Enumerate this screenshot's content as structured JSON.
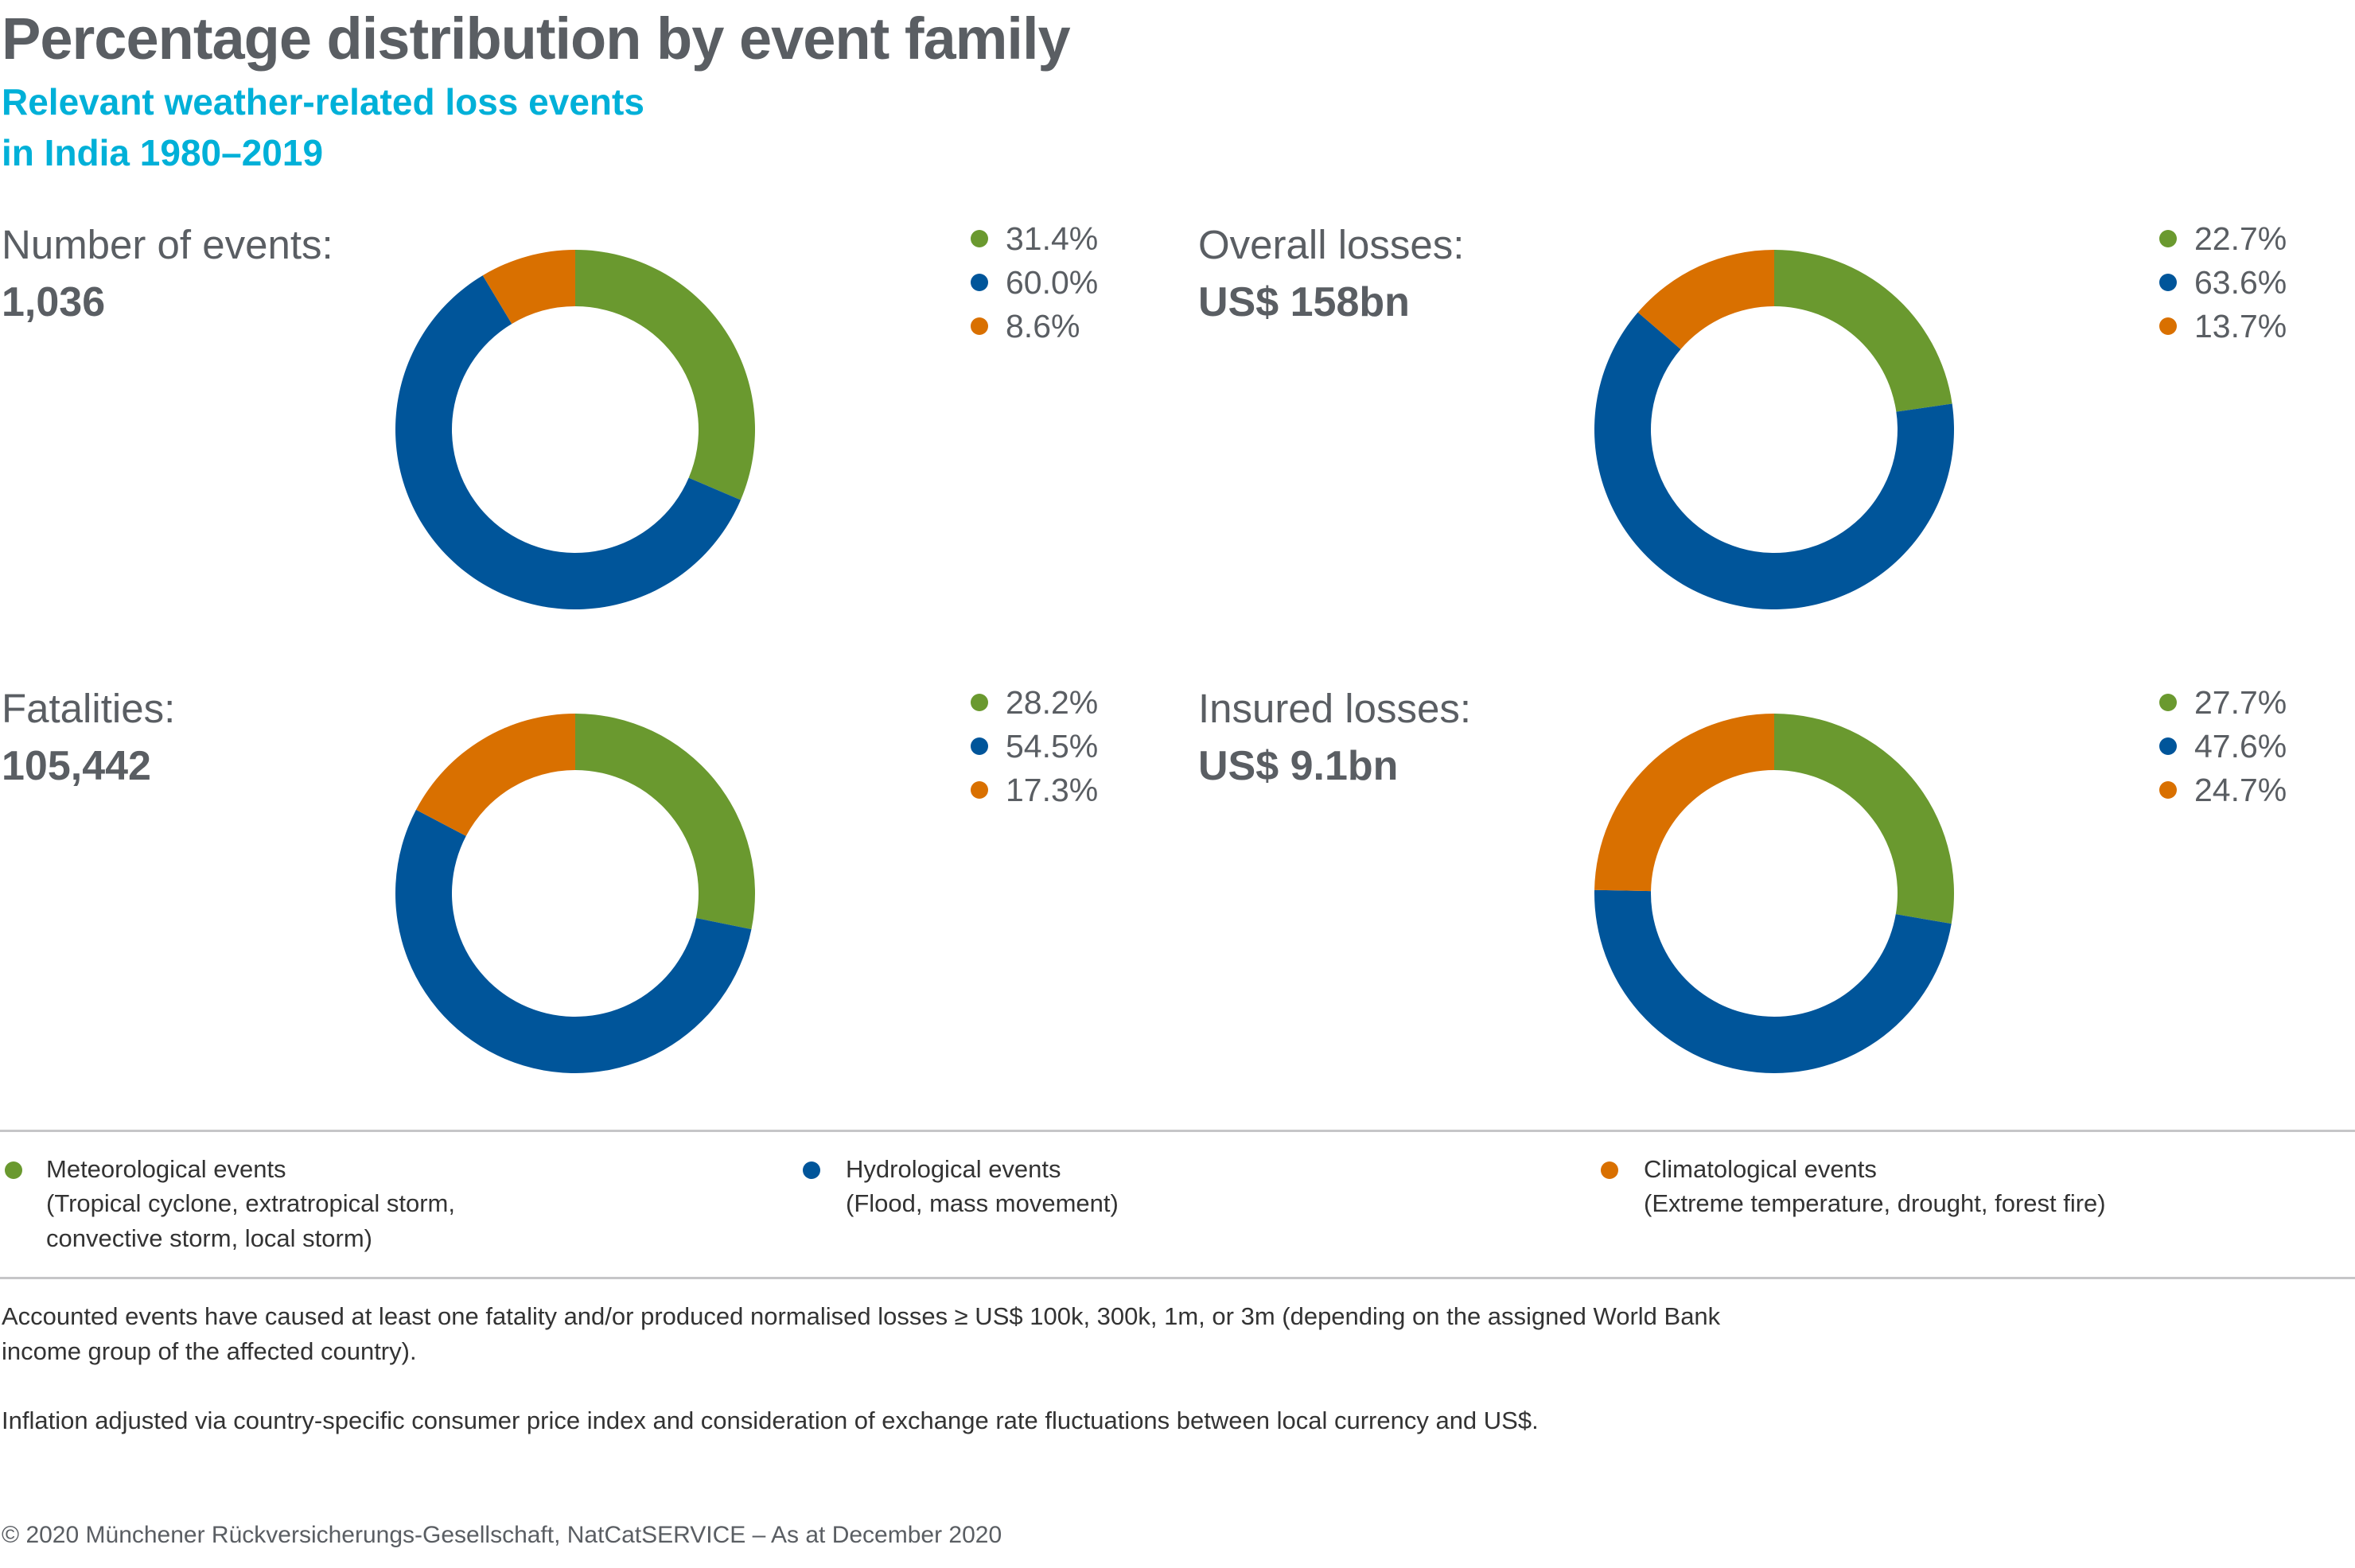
{
  "header": {
    "title": "Percentage distribution by event family",
    "subtitle_line1": "Relevant weather-related loss events",
    "subtitle_line2": "in India 1980–2019"
  },
  "colors": {
    "meteorological": "#6a992f",
    "hydrological": "#00559a",
    "climatological": "#d97000"
  },
  "chart_data": [
    {
      "type": "pie",
      "title": "Number of events:",
      "total": "1,036",
      "categories": [
        "Meteorological events",
        "Hydrological events",
        "Climatological events"
      ],
      "values": [
        31.4,
        60.0,
        8.6
      ],
      "labels": [
        "31.4%",
        "60.0%",
        "8.6%"
      ]
    },
    {
      "type": "pie",
      "title": "Overall losses:",
      "total": "US$ 158bn",
      "categories": [
        "Meteorological events",
        "Hydrological events",
        "Climatological events"
      ],
      "values": [
        22.7,
        63.6,
        13.7
      ],
      "labels": [
        "22.7%",
        "63.6%",
        "13.7%"
      ]
    },
    {
      "type": "pie",
      "title": "Fatalities:",
      "total": "105,442",
      "categories": [
        "Meteorological events",
        "Hydrological events",
        "Climatological events"
      ],
      "values": [
        28.2,
        54.5,
        17.3
      ],
      "labels": [
        "28.2%",
        "54.5%",
        "17.3%"
      ]
    },
    {
      "type": "pie",
      "title": "Insured losses:",
      "total": "US$ 9.1bn",
      "categories": [
        "Meteorological events",
        "Hydrological events",
        "Climatological events"
      ],
      "values": [
        27.7,
        47.6,
        24.7
      ],
      "labels": [
        "27.7%",
        "47.6%",
        "24.7%"
      ]
    }
  ],
  "legend": [
    {
      "label": "Meteorological events",
      "detail1": "(Tropical cyclone, extratropical storm,",
      "detail2": "convective storm, local storm)"
    },
    {
      "label": "Hydrological events",
      "detail1": "(Flood, mass movement)"
    },
    {
      "label": "Climatological events",
      "detail1": "(Extreme temperature, drought, forest fire)"
    }
  ],
  "notes": {
    "note1_line1": "Accounted events have caused at least one fatality and/or produced normalised losses ≥ US$ 100k, 300k, 1m, or 3m (depending on the assigned World Bank",
    "note1_line2": "income group of the affected country).",
    "note2": "Inflation adjusted via country-specific consumer price index and consideration of exchange rate fluctuations between local currency and US$."
  },
  "footer": {
    "copyright": "© 2020 Münchener Rückversicherungs-Gesellschaft, NatCatSERVICE – As at December 2020"
  }
}
